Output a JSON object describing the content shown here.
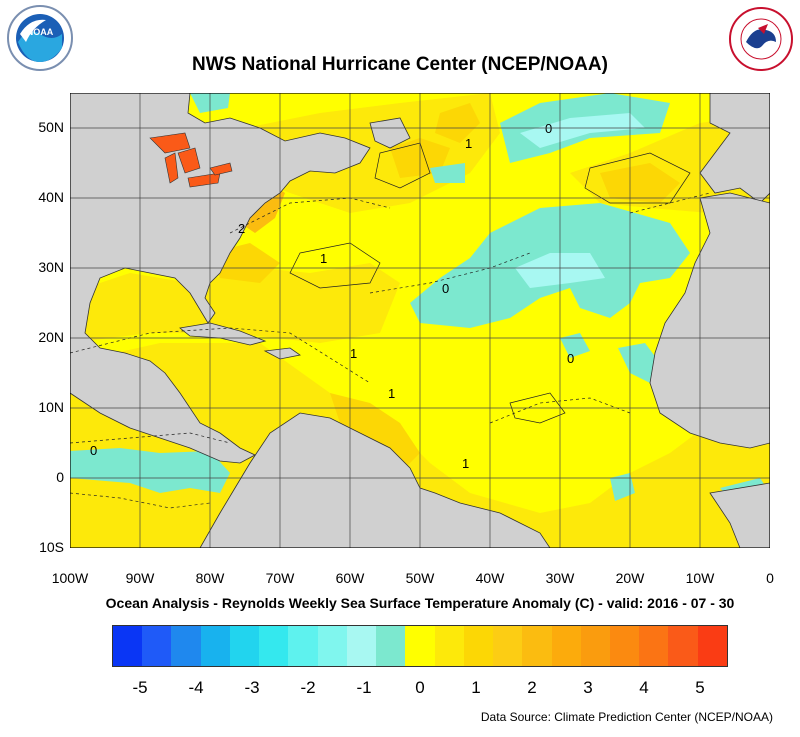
{
  "title": "NWS National Hurricane Center (NCEP/NOAA)",
  "subtitle": "Ocean Analysis - Reynolds Weekly Sea Surface Temperature Anomaly (C) - valid: 2016 - 07 - 30",
  "source": "Data Source: Climate Prediction Center (NCEP/NOAA)",
  "logos": {
    "left": "noaa-logo",
    "right": "nws-logo"
  },
  "map": {
    "lat_labels": [
      "50N",
      "40N",
      "30N",
      "20N",
      "10N",
      "0",
      "10S"
    ],
    "lon_labels": [
      "100W",
      "90W",
      "80W",
      "70W",
      "60W",
      "50W",
      "40W",
      "30W",
      "20W",
      "10W",
      "0"
    ],
    "lat_range": [
      -10,
      55
    ],
    "lon_range": [
      -100,
      0
    ],
    "land_color": "#d0d0d0",
    "gridline_color": "#444444",
    "contour_labels": [
      "1",
      "0",
      "2",
      "1",
      "0",
      "1",
      "0",
      "1",
      "0",
      "1"
    ]
  },
  "colorbar": {
    "labels": [
      "-5",
      "-4",
      "-3",
      "-2",
      "-1",
      "0",
      "1",
      "2",
      "3",
      "4",
      "5"
    ],
    "colors": [
      "#0a36f5",
      "#1f5af8",
      "#1f88ee",
      "#18b2ee",
      "#22d4ee",
      "#34e8ee",
      "#5ef2ee",
      "#80f6ee",
      "#a8f8f2",
      "#7ce8cf",
      "#ffff00",
      "#fde90a",
      "#fcd705",
      "#fccd14",
      "#fbbc10",
      "#fcab0c",
      "#fa9c0e",
      "#fb8a10",
      "#fb7414",
      "#fa5a18",
      "#fa3c14"
    ]
  }
}
